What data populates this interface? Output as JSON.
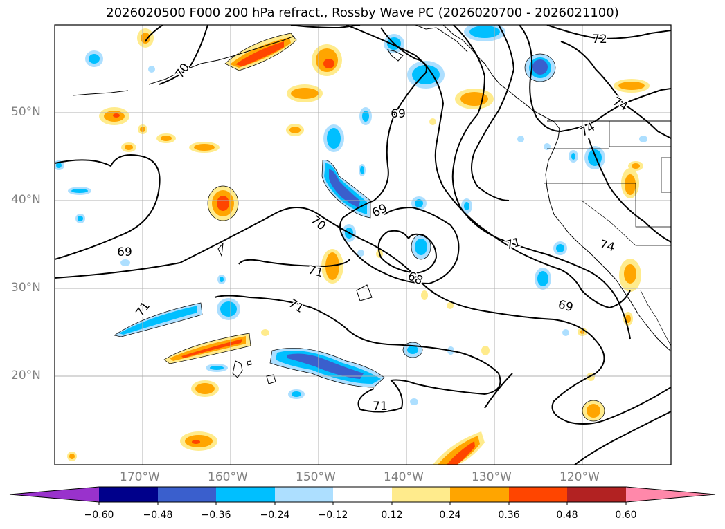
{
  "title": "2026020500 F000 200 hPa refract., Rossby Wave PC (2026020700 - 2026021100)",
  "map": {
    "lat_labels": [
      "50°N",
      "40°N",
      "30°N",
      "20°N"
    ],
    "lon_labels": [
      "170°W",
      "160°W",
      "150°W",
      "140°W",
      "130°W",
      "120°W"
    ],
    "contour_labels": [
      "70",
      "69",
      "69",
      "69",
      "71",
      "71",
      "71",
      "71",
      "70",
      "68",
      "71",
      "69",
      "72",
      "74",
      "74",
      "74"
    ]
  },
  "colorbar": {
    "tick_labels": [
      "−0.60",
      "−0.48",
      "−0.36",
      "−0.24",
      "−0.12",
      "0.12",
      "0.24",
      "0.36",
      "0.48",
      "0.60"
    ],
    "colors": [
      "#9932CC",
      "#00008B",
      "#3A5FCD",
      "#00BFFF",
      "#ADDFFF",
      "#FFFFFF",
      "#FFEB8C",
      "#FFA500",
      "#FF4500",
      "#B22222",
      "#FF88AA"
    ]
  },
  "shading_colors": {
    "pos1": "#FFEB8C",
    "pos2": "#FFA500",
    "pos3": "#FF4500",
    "neg1": "#ADDFFF",
    "neg2": "#00BFFF",
    "neg3": "#3A5FCD"
  }
}
